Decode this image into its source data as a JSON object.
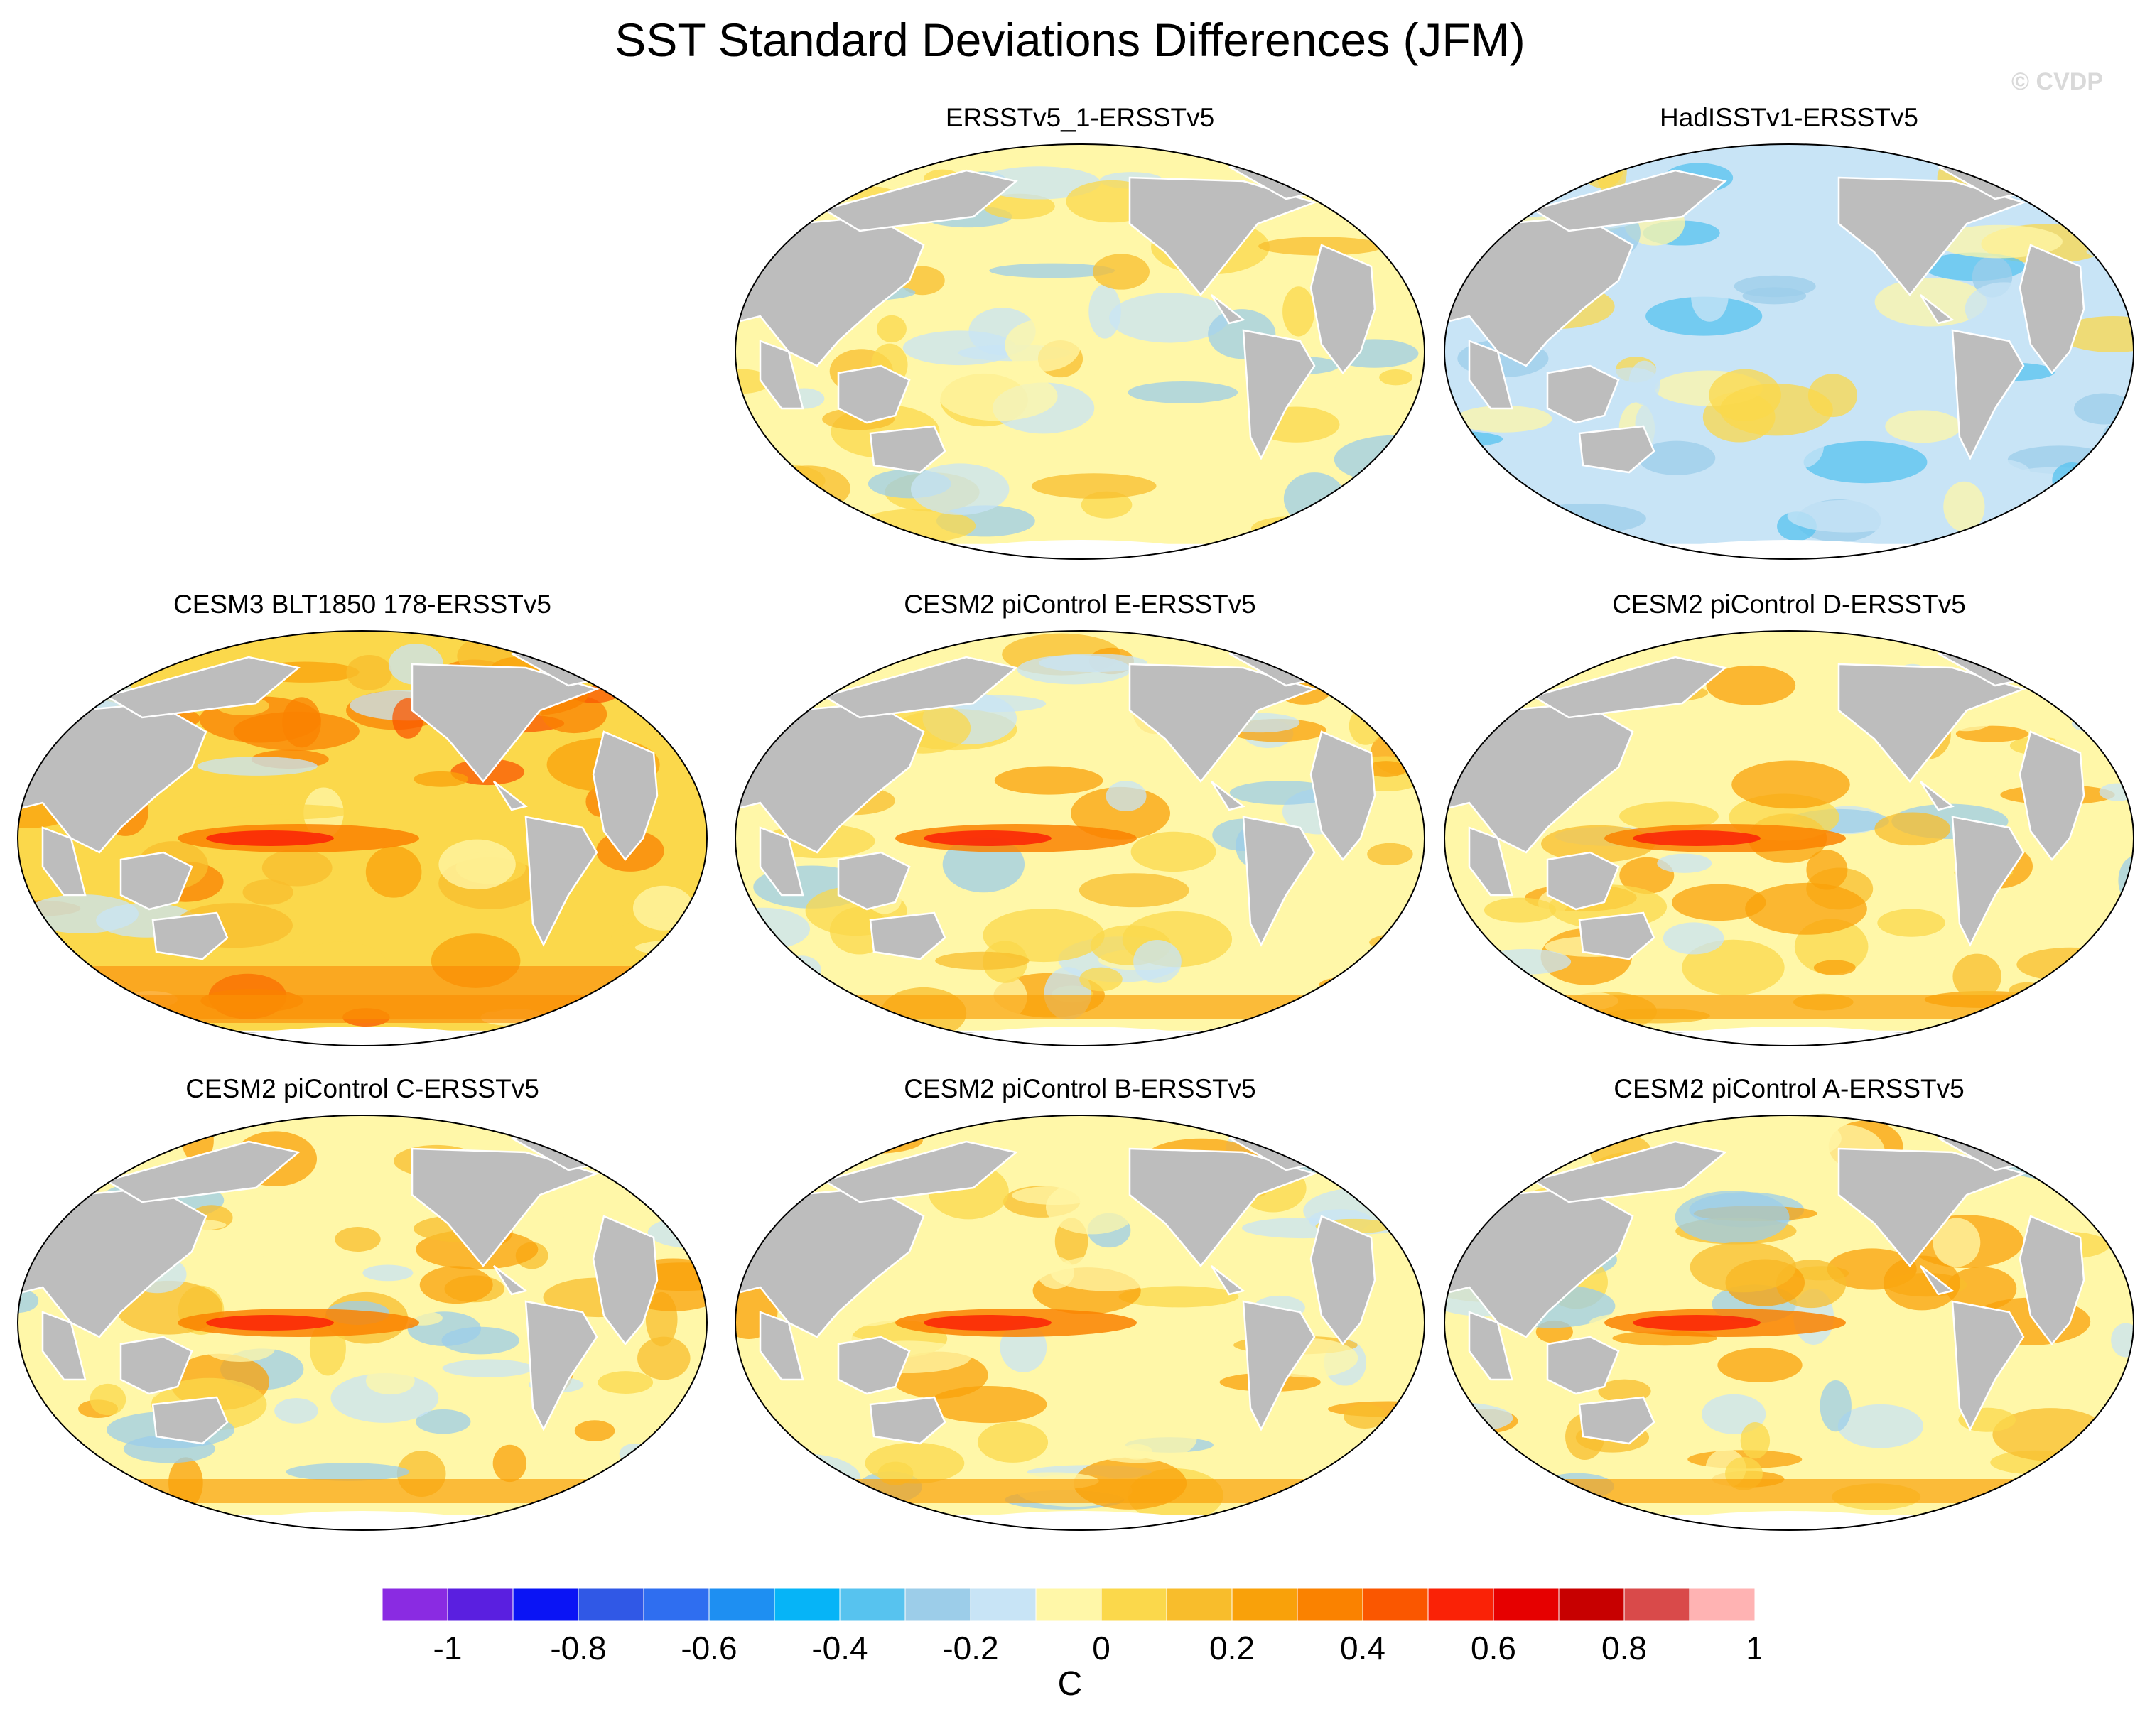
{
  "title": "SST Standard Deviations Differences (JFM)",
  "credit": "© CVDP",
  "colorbar": {
    "unit": "C",
    "colors": [
      "#8a2be2",
      "#5a1fe0",
      "#0a14f5",
      "#3058e6",
      "#2f6ef0",
      "#1e8ff2",
      "#06b4f7",
      "#57c3ef",
      "#9ccde9",
      "#c8e4f6",
      "#fff7a8",
      "#fbd84b",
      "#f8bd2c",
      "#f9a10a",
      "#fa8200",
      "#fa5700",
      "#fa2206",
      "#e60000",
      "#c70000",
      "#d94a4a",
      "#ffb3b3"
    ],
    "tick_labels": [
      "-1",
      "-0.8",
      "-0.6",
      "-0.4",
      "-0.2",
      "0",
      "0.2",
      "0.4",
      "0.6",
      "0.8",
      "1"
    ]
  },
  "panels": [
    {
      "title": "ERSSTv5_1-ERSSTv5",
      "pattern": "obs_warm"
    },
    {
      "title": "HadISSTv1-ERSSTv5",
      "pattern": "obs_cool"
    },
    {
      "title": "CESM3 BLT1850 178-ERSSTv5",
      "pattern": "cesm3"
    },
    {
      "title": "CESM2 piControl E-ERSSTv5",
      "pattern": "cesm2"
    },
    {
      "title": "CESM2 piControl D-ERSSTv5",
      "pattern": "cesm2"
    },
    {
      "title": "CESM2 piControl C-ERSSTv5",
      "pattern": "cesm2"
    },
    {
      "title": "CESM2 piControl B-ERSSTv5",
      "pattern": "cesm2"
    },
    {
      "title": "CESM2 piControl A-ERSSTv5",
      "pattern": "cesm2"
    }
  ]
}
